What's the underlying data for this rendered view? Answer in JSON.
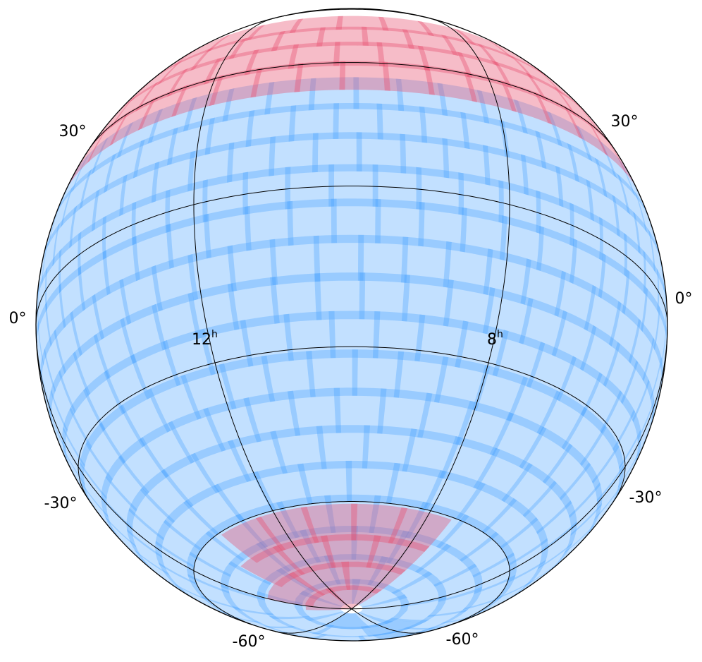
{
  "latitude_labels": {
    "left": [
      "30°",
      "0°",
      "-30°",
      "-60°"
    ],
    "right": [
      "30°",
      "0°",
      "-30°",
      "-60°"
    ]
  },
  "hour_labels": [
    {
      "value": "12",
      "unit": "h"
    },
    {
      "value": "8",
      "unit": "h"
    }
  ]
}
